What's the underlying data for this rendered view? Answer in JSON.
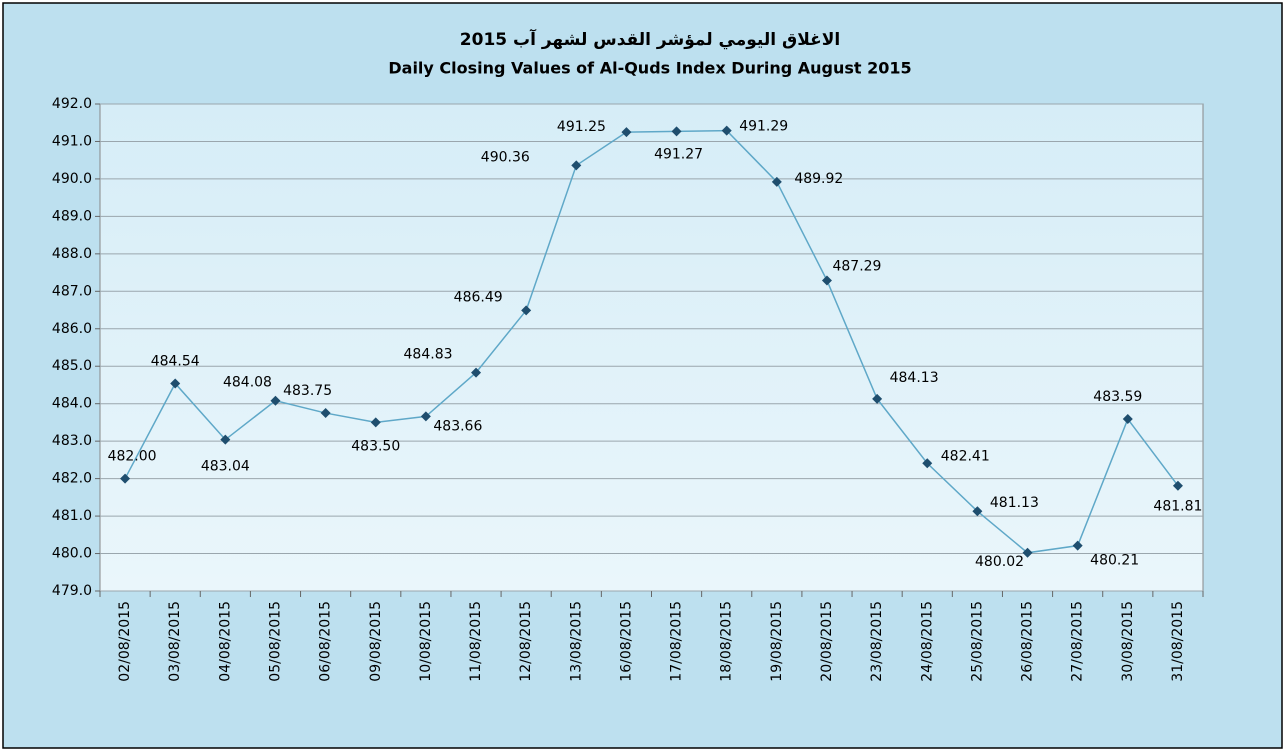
{
  "chart_data": {
    "type": "line",
    "title": "الاغلاق اليومي لمؤشر القدس لشهر آب 2015",
    "subtitle": "Daily Closing Values of Al-Quds Index During August 2015",
    "categories": [
      "02/08/2015",
      "03/08/2015",
      "04/08/2015",
      "05/08/2015",
      "06/08/2015",
      "09/08/2015",
      "10/08/2015",
      "11/08/2015",
      "12/08/2015",
      "13/08/2015",
      "16/08/2015",
      "17/08/2015",
      "18/08/2015",
      "19/08/2015",
      "20/08/2015",
      "23/08/2015",
      "24/08/2015",
      "25/08/2015",
      "26/08/2015",
      "27/08/2015",
      "30/08/2015",
      "31/08/2015"
    ],
    "values": [
      482.0,
      484.54,
      483.04,
      484.08,
      483.75,
      483.5,
      483.66,
      484.83,
      486.49,
      490.36,
      491.25,
      491.27,
      491.29,
      489.92,
      487.29,
      484.13,
      482.41,
      481.13,
      480.02,
      480.21,
      483.59,
      481.81
    ],
    "value_labels": [
      "482.00",
      "484.54",
      "483.04",
      "484.08",
      "483.75",
      "483.50",
      "483.66",
      "484.83",
      "486.49",
      "490.36",
      "491.25",
      "491.27",
      "491.29",
      "489.92",
      "487.29",
      "484.13",
      "482.41",
      "481.13",
      "480.02",
      "480.21",
      "483.59",
      "481.81"
    ],
    "color": "#5fa8c8",
    "marker_color": "#1f4e6e",
    "ylim": [
      479,
      492
    ],
    "yticks": [
      {
        "value": 479,
        "label": "479.0"
      },
      {
        "value": 480,
        "label": "480.0"
      },
      {
        "value": 481,
        "label": "481.0"
      },
      {
        "value": 482,
        "label": "482.0"
      },
      {
        "value": 483,
        "label": "483.0"
      },
      {
        "value": 484,
        "label": "484.0"
      },
      {
        "value": 485,
        "label": "485.0"
      },
      {
        "value": 486,
        "label": "486.0"
      },
      {
        "value": 487,
        "label": "487.0"
      },
      {
        "value": 488,
        "label": "488.0"
      },
      {
        "value": 489,
        "label": "489.0"
      },
      {
        "value": 490,
        "label": "490.0"
      },
      {
        "value": 491,
        "label": "491.0"
      },
      {
        "value": 492,
        "label": "492.0"
      }
    ],
    "grid": true
  }
}
